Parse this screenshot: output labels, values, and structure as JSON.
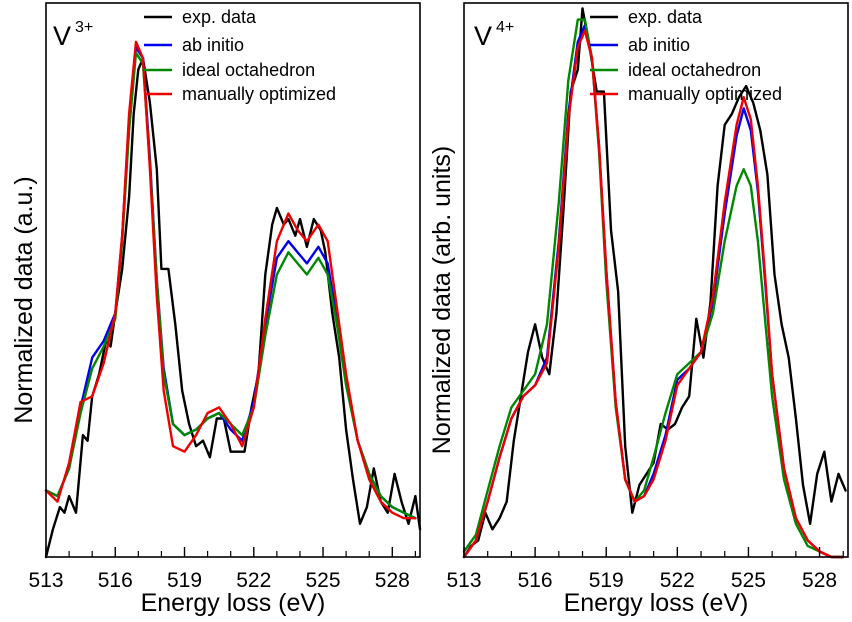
{
  "chart_data": [
    {
      "type": "line",
      "panel_label": "V",
      "panel_label_sup": "3+",
      "xlabel": "Energy loss (eV)",
      "ylabel": "Normalized data (a.u.)",
      "xlim": [
        513,
        529.2
      ],
      "ylim": [
        0,
        1.0
      ],
      "xticks": [
        513,
        516,
        519,
        522,
        525,
        528
      ],
      "tick_labels": [
        "513",
        "516",
        "519",
        "522",
        "525",
        "528"
      ],
      "legend_position": "top-center",
      "series": [
        {
          "name": "exp. data",
          "color": "#000000",
          "x": [
            513.0,
            513.3,
            513.6,
            513.8,
            514.0,
            514.3,
            514.6,
            514.8,
            515.0,
            515.3,
            515.6,
            515.8,
            516.0,
            516.3,
            516.6,
            516.8,
            517.0,
            517.2,
            517.5,
            517.8,
            518.0,
            518.3,
            518.6,
            518.9,
            519.2,
            519.5,
            519.8,
            520.1,
            520.4,
            520.7,
            521.0,
            521.3,
            521.6,
            521.9,
            522.2,
            522.5,
            522.8,
            523.0,
            523.3,
            523.5,
            523.8,
            524.0,
            524.3,
            524.6,
            524.9,
            525.1,
            525.4,
            525.7,
            526.0,
            526.3,
            526.6,
            526.9,
            527.2,
            527.5,
            527.8,
            528.1,
            528.4,
            528.7,
            529.0,
            529.2
          ],
          "y": [
            0.0,
            0.05,
            0.09,
            0.08,
            0.11,
            0.08,
            0.22,
            0.21,
            0.29,
            0.33,
            0.39,
            0.38,
            0.44,
            0.52,
            0.65,
            0.8,
            0.88,
            0.9,
            0.82,
            0.7,
            0.52,
            0.52,
            0.42,
            0.3,
            0.24,
            0.2,
            0.21,
            0.18,
            0.25,
            0.25,
            0.19,
            0.19,
            0.19,
            0.27,
            0.33,
            0.51,
            0.6,
            0.63,
            0.6,
            0.61,
            0.58,
            0.61,
            0.56,
            0.61,
            0.59,
            0.55,
            0.44,
            0.36,
            0.23,
            0.14,
            0.06,
            0.09,
            0.16,
            0.1,
            0.08,
            0.15,
            0.1,
            0.06,
            0.11,
            0.05
          ]
        },
        {
          "name": "ab initio",
          "color": "#0000ee",
          "x": [
            513.0,
            513.5,
            514.0,
            514.5,
            515.0,
            515.5,
            516.0,
            516.3,
            516.6,
            516.9,
            517.2,
            517.5,
            517.8,
            518.1,
            518.5,
            519.0,
            519.5,
            520.0,
            520.5,
            521.0,
            521.5,
            522.0,
            522.5,
            523.0,
            523.5,
            523.9,
            524.3,
            524.8,
            525.2,
            525.6,
            526.0,
            526.5,
            527.0,
            527.5,
            528.0,
            528.5,
            529.0
          ],
          "y": [
            0.12,
            0.11,
            0.16,
            0.27,
            0.36,
            0.39,
            0.44,
            0.58,
            0.79,
            0.92,
            0.9,
            0.72,
            0.5,
            0.34,
            0.24,
            0.22,
            0.23,
            0.25,
            0.26,
            0.23,
            0.21,
            0.28,
            0.42,
            0.54,
            0.57,
            0.55,
            0.53,
            0.56,
            0.53,
            0.43,
            0.32,
            0.21,
            0.15,
            0.11,
            0.09,
            0.08,
            0.07
          ]
        },
        {
          "name": "ideal octahedron",
          "color": "#008800",
          "x": [
            513.0,
            513.5,
            514.0,
            514.5,
            515.0,
            515.5,
            516.0,
            516.3,
            516.6,
            516.9,
            517.2,
            517.5,
            517.8,
            518.1,
            518.5,
            519.0,
            519.5,
            520.0,
            520.5,
            521.0,
            521.5,
            522.0,
            522.5,
            523.0,
            523.5,
            523.9,
            524.3,
            524.8,
            525.2,
            525.6,
            526.0,
            526.5,
            527.0,
            527.5,
            528.0,
            528.5,
            529.0
          ],
          "y": [
            0.12,
            0.11,
            0.16,
            0.26,
            0.34,
            0.38,
            0.43,
            0.57,
            0.77,
            0.91,
            0.89,
            0.71,
            0.5,
            0.33,
            0.24,
            0.22,
            0.23,
            0.25,
            0.26,
            0.24,
            0.22,
            0.27,
            0.4,
            0.51,
            0.55,
            0.53,
            0.51,
            0.54,
            0.51,
            0.42,
            0.31,
            0.21,
            0.15,
            0.11,
            0.09,
            0.08,
            0.07
          ]
        },
        {
          "name": "manually optimized",
          "color": "#ee0000",
          "x": [
            513.0,
            513.5,
            514.0,
            514.5,
            515.0,
            515.5,
            516.0,
            516.3,
            516.6,
            516.9,
            517.2,
            517.5,
            517.8,
            518.1,
            518.5,
            519.0,
            519.5,
            520.0,
            520.5,
            521.0,
            521.5,
            522.0,
            522.5,
            523.0,
            523.5,
            523.9,
            524.3,
            524.8,
            525.2,
            525.6,
            526.0,
            526.5,
            527.0,
            527.5,
            528.0,
            528.5,
            529.0
          ],
          "y": [
            0.12,
            0.1,
            0.17,
            0.28,
            0.29,
            0.35,
            0.44,
            0.58,
            0.8,
            0.93,
            0.9,
            0.7,
            0.47,
            0.3,
            0.2,
            0.19,
            0.22,
            0.26,
            0.27,
            0.24,
            0.2,
            0.27,
            0.43,
            0.57,
            0.62,
            0.59,
            0.57,
            0.6,
            0.57,
            0.45,
            0.33,
            0.21,
            0.14,
            0.1,
            0.08,
            0.07,
            0.07
          ]
        }
      ]
    },
    {
      "type": "line",
      "panel_label": "V",
      "panel_label_sup": "4+",
      "xlabel": "Energy loss (eV)",
      "ylabel": "Normalized data (arb. units)",
      "xlim": [
        513,
        529.2
      ],
      "ylim": [
        0,
        1.0
      ],
      "xticks": [
        513,
        516,
        519,
        522,
        525,
        528
      ],
      "tick_labels": [
        "513",
        "516",
        "519",
        "522",
        "525",
        "528"
      ],
      "legend_position": "top-right",
      "series": [
        {
          "name": "exp. data",
          "color": "#000000",
          "x": [
            513.0,
            513.3,
            513.6,
            513.9,
            514.2,
            514.5,
            514.8,
            515.1,
            515.4,
            515.7,
            516.0,
            516.3,
            516.6,
            516.9,
            517.2,
            517.5,
            517.8,
            518.0,
            518.3,
            518.6,
            518.9,
            519.2,
            519.5,
            519.8,
            520.1,
            520.4,
            520.7,
            521.0,
            521.3,
            521.6,
            521.9,
            522.2,
            522.5,
            522.8,
            523.1,
            523.4,
            523.7,
            524.0,
            524.3,
            524.6,
            524.9,
            525.2,
            525.5,
            525.8,
            526.1,
            526.4,
            526.7,
            527.0,
            527.3,
            527.6,
            527.9,
            528.2,
            528.5,
            528.8,
            529.1
          ],
          "y": [
            0.0,
            0.02,
            0.03,
            0.08,
            0.05,
            0.07,
            0.1,
            0.21,
            0.29,
            0.37,
            0.42,
            0.36,
            0.33,
            0.44,
            0.63,
            0.84,
            0.88,
            0.99,
            0.92,
            0.84,
            0.84,
            0.59,
            0.48,
            0.2,
            0.08,
            0.13,
            0.15,
            0.17,
            0.24,
            0.23,
            0.24,
            0.27,
            0.29,
            0.43,
            0.36,
            0.46,
            0.67,
            0.78,
            0.8,
            0.83,
            0.85,
            0.82,
            0.77,
            0.69,
            0.51,
            0.42,
            0.36,
            0.25,
            0.13,
            0.06,
            0.15,
            0.19,
            0.1,
            0.15,
            0.12
          ]
        },
        {
          "name": "ab initio",
          "color": "#0000ee",
          "x": [
            513.0,
            513.5,
            514.0,
            514.5,
            515.0,
            515.5,
            516.0,
            516.5,
            517.0,
            517.4,
            517.8,
            518.1,
            518.4,
            518.7,
            519.0,
            519.4,
            519.8,
            520.2,
            520.6,
            521.0,
            521.5,
            522.0,
            522.5,
            523.0,
            523.5,
            524.0,
            524.5,
            524.8,
            525.1,
            525.4,
            525.7,
            526.0,
            526.5,
            527.0,
            527.5,
            528.0,
            528.5,
            529.0
          ],
          "y": [
            0.0,
            0.03,
            0.1,
            0.18,
            0.25,
            0.29,
            0.31,
            0.36,
            0.57,
            0.8,
            0.93,
            0.96,
            0.9,
            0.74,
            0.52,
            0.28,
            0.14,
            0.1,
            0.11,
            0.15,
            0.22,
            0.32,
            0.34,
            0.37,
            0.46,
            0.62,
            0.76,
            0.81,
            0.77,
            0.66,
            0.5,
            0.33,
            0.16,
            0.07,
            0.03,
            0.01,
            0.0,
            0.0
          ]
        },
        {
          "name": "ideal octahedron",
          "color": "#008800",
          "x": [
            513.0,
            513.5,
            514.0,
            514.5,
            515.0,
            515.5,
            516.0,
            516.5,
            517.0,
            517.4,
            517.8,
            518.1,
            518.4,
            518.7,
            519.0,
            519.4,
            519.8,
            520.2,
            520.6,
            521.0,
            521.5,
            522.0,
            522.5,
            523.0,
            523.5,
            524.0,
            524.5,
            524.8,
            525.1,
            525.4,
            525.7,
            526.0,
            526.5,
            527.0,
            527.5,
            528.0,
            528.5,
            529.0
          ],
          "y": [
            0.01,
            0.04,
            0.12,
            0.2,
            0.27,
            0.3,
            0.33,
            0.42,
            0.64,
            0.86,
            0.97,
            0.97,
            0.9,
            0.73,
            0.5,
            0.27,
            0.14,
            0.1,
            0.12,
            0.18,
            0.26,
            0.33,
            0.35,
            0.37,
            0.44,
            0.57,
            0.67,
            0.7,
            0.67,
            0.57,
            0.43,
            0.29,
            0.14,
            0.06,
            0.02,
            0.01,
            0.0,
            0.0
          ]
        },
        {
          "name": "manually optimized",
          "color": "#ee0000",
          "x": [
            513.0,
            513.5,
            514.0,
            514.5,
            515.0,
            515.5,
            516.0,
            516.5,
            517.0,
            517.4,
            517.8,
            518.1,
            518.4,
            518.7,
            519.0,
            519.4,
            519.8,
            520.2,
            520.6,
            521.0,
            521.5,
            522.0,
            522.5,
            523.0,
            523.5,
            524.0,
            524.5,
            524.8,
            525.1,
            525.4,
            525.7,
            526.0,
            526.5,
            527.0,
            527.5,
            528.0,
            528.5,
            529.0
          ],
          "y": [
            0.0,
            0.03,
            0.1,
            0.18,
            0.25,
            0.29,
            0.31,
            0.35,
            0.56,
            0.79,
            0.92,
            0.95,
            0.9,
            0.74,
            0.52,
            0.28,
            0.14,
            0.1,
            0.11,
            0.14,
            0.21,
            0.31,
            0.34,
            0.37,
            0.47,
            0.64,
            0.78,
            0.83,
            0.79,
            0.67,
            0.51,
            0.33,
            0.16,
            0.07,
            0.03,
            0.01,
            0.0,
            0.0
          ]
        }
      ]
    }
  ]
}
